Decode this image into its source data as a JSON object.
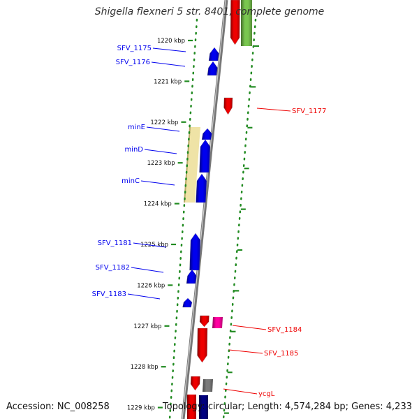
{
  "title": "Shigella flexneri 5 str. 8401, complete genome",
  "footer": {
    "accession": "Accession: NC_008258",
    "summary": "Topology: circular; Length: 4,574,284 bp; Genes: 4,233"
  },
  "colors": {
    "forward_strand": "#0000ee",
    "reverse_strand": "#ee0000",
    "tick_marks": "#228b22",
    "backbone": "#777777",
    "highlight_region": "#efe3a6",
    "other_features": [
      "#ff00a0",
      "#7a7a7a",
      "#79c64f",
      "#000080"
    ]
  },
  "ruler": {
    "unit": "kbp",
    "ticks": [
      {
        "kbp": 1220,
        "label": "1220 kbp"
      },
      {
        "kbp": 1221,
        "label": "1221 kbp"
      },
      {
        "kbp": 1222,
        "label": "1222 kbp"
      },
      {
        "kbp": 1223,
        "label": "1223 kbp"
      },
      {
        "kbp": 1224,
        "label": "1224 kbp"
      },
      {
        "kbp": 1225,
        "label": "1225 kbp"
      },
      {
        "kbp": 1226,
        "label": "1226 kbp"
      },
      {
        "kbp": 1227,
        "label": "1227 kbp"
      },
      {
        "kbp": 1228,
        "label": "1228 kbp"
      },
      {
        "kbp": 1229,
        "label": "1229 kbp"
      }
    ]
  },
  "genes_forward": [
    {
      "name": "SFV_1175",
      "color": "#0000ee"
    },
    {
      "name": "SFV_1176",
      "color": "#0000ee"
    },
    {
      "name": "minE",
      "color": "#0000ee"
    },
    {
      "name": "minD",
      "color": "#0000ee"
    },
    {
      "name": "minC",
      "color": "#0000ee"
    },
    {
      "name": "SFV_1181",
      "color": "#0000ee"
    },
    {
      "name": "SFV_1182",
      "color": "#0000ee"
    },
    {
      "name": "SFV_1183",
      "color": "#0000ee"
    }
  ],
  "genes_reverse": [
    {
      "name": "SFV_1177",
      "color": "#ee0000"
    },
    {
      "name": "SFV_1184",
      "color": "#ee0000"
    },
    {
      "name": "SFV_1185",
      "color": "#ee0000"
    },
    {
      "name": "ycgL",
      "color": "#ee0000"
    }
  ]
}
